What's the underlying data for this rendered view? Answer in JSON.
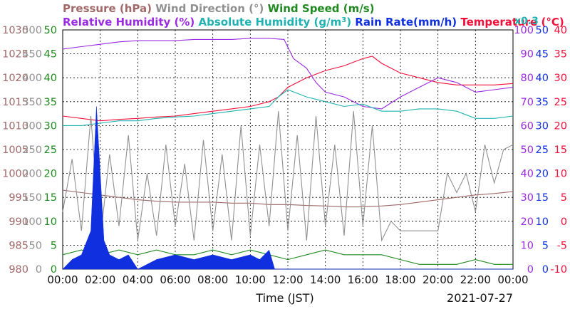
{
  "chart_data": {
    "type": "line",
    "legend": {
      "row1": [
        {
          "label": "Pressure (hPa)",
          "color": "#a06868"
        },
        {
          "label": "Wind Direction (°)",
          "color": "#909090"
        },
        {
          "label": "Wind Speed (m/s)",
          "color": "#1f8a1f"
        }
      ],
      "row2": [
        {
          "label": "Relative Humidity (%)",
          "color": "#9a2be0"
        },
        {
          "label": "Absolute Humidity (g/m",
          "sup": "3",
          "close": ")",
          "color": "#20b2b2"
        },
        {
          "label": "Rain Rate(mm/h)",
          "color": "#1030e0"
        },
        {
          "label": "Temperature (°C)",
          "color": "#f0103a"
        }
      ],
      "rain_scale_note": "x0.3"
    },
    "xlabel": "Time (JST)",
    "date": "2021-07-27",
    "x_ticks": [
      "00:00",
      "02:00",
      "04:00",
      "06:00",
      "08:00",
      "10:00",
      "12:00",
      "14:00",
      "16:00",
      "18:00",
      "20:00",
      "22:00",
      "00:00"
    ],
    "xlim_hours": [
      0,
      24
    ],
    "axes": {
      "pressure": {
        "ticks": [
          980,
          985,
          990,
          995,
          1000,
          1005,
          1010,
          1015,
          1020,
          1025,
          1030
        ],
        "range": [
          980,
          1030
        ],
        "color": "#a06868"
      },
      "wind_direction": {
        "ticks": [
          0,
          50,
          100,
          150,
          200,
          250,
          300,
          350,
          400,
          450,
          500
        ],
        "range": [
          0,
          500
        ],
        "color": "#909090"
      },
      "wind_speed": {
        "ticks": [
          0,
          5,
          10,
          15,
          20,
          25,
          30,
          35,
          40,
          45,
          50
        ],
        "range": [
          0,
          50
        ],
        "color": "#1f8a1f"
      },
      "relative_humidity": {
        "ticks": [
          0,
          10,
          20,
          30,
          40,
          50,
          60,
          70,
          80,
          90,
          100
        ],
        "range": [
          0,
          100
        ],
        "color": "#9a2be0"
      },
      "absolute_humidity_rain": {
        "ticks": [
          0,
          5,
          10,
          15,
          20,
          25,
          30,
          35,
          40,
          45,
          50
        ],
        "range": [
          0,
          50
        ],
        "color": "#1030e0"
      },
      "temperature": {
        "ticks": [
          -10,
          -5,
          0,
          5,
          10,
          15,
          20,
          25,
          30,
          35,
          40
        ],
        "range": [
          -10,
          40
        ],
        "color": "#f0103a"
      }
    },
    "series": [
      {
        "name": "Temperature (°C)",
        "axis": "temperature",
        "color": "#f0103a",
        "points": [
          [
            0,
            22
          ],
          [
            1,
            21.5
          ],
          [
            2,
            21
          ],
          [
            3,
            21.3
          ],
          [
            4,
            21.5
          ],
          [
            5,
            21.8
          ],
          [
            6,
            22
          ],
          [
            7,
            22.5
          ],
          [
            8,
            23
          ],
          [
            9,
            23.5
          ],
          [
            10,
            24
          ],
          [
            11,
            25
          ],
          [
            11.5,
            26
          ],
          [
            12,
            28
          ],
          [
            13,
            30
          ],
          [
            14,
            31.5
          ],
          [
            15,
            32.5
          ],
          [
            16,
            34
          ],
          [
            16.5,
            34.5
          ],
          [
            17,
            33
          ],
          [
            18,
            31
          ],
          [
            19,
            30
          ],
          [
            20,
            29
          ],
          [
            21,
            28.5
          ],
          [
            22,
            28.5
          ],
          [
            23,
            28.5
          ],
          [
            24,
            28.8
          ]
        ]
      },
      {
        "name": "Relative Humidity (%)",
        "axis": "relative_humidity",
        "color": "#9a2be0",
        "points": [
          [
            0,
            92
          ],
          [
            1,
            93
          ],
          [
            2,
            94
          ],
          [
            3,
            95
          ],
          [
            4,
            95.5
          ],
          [
            5,
            95.5
          ],
          [
            6,
            95.5
          ],
          [
            7,
            96
          ],
          [
            8,
            96
          ],
          [
            9,
            96
          ],
          [
            10,
            96.5
          ],
          [
            11,
            96.5
          ],
          [
            11.8,
            96
          ],
          [
            12.3,
            88
          ],
          [
            13,
            84
          ],
          [
            13.5,
            78
          ],
          [
            14,
            74
          ],
          [
            15,
            72
          ],
          [
            16,
            68
          ],
          [
            17,
            67
          ],
          [
            18,
            72
          ],
          [
            19,
            76
          ],
          [
            20,
            80
          ],
          [
            21,
            78
          ],
          [
            22,
            74
          ],
          [
            23,
            75
          ],
          [
            24,
            76
          ]
        ]
      },
      {
        "name": "Absolute Humidity (g/m³)",
        "axis": "absolute_humidity_rain",
        "color": "#20b2b2",
        "points": [
          [
            0,
            30
          ],
          [
            1,
            30
          ],
          [
            2,
            30.5
          ],
          [
            3,
            31
          ],
          [
            4,
            31
          ],
          [
            5,
            31.5
          ],
          [
            6,
            31.8
          ],
          [
            7,
            32
          ],
          [
            8,
            32.5
          ],
          [
            9,
            33
          ],
          [
            10,
            33.5
          ],
          [
            11,
            34
          ],
          [
            11.5,
            36
          ],
          [
            12,
            37.5
          ],
          [
            13,
            36
          ],
          [
            14,
            35
          ],
          [
            15,
            34
          ],
          [
            16,
            34.5
          ],
          [
            17,
            33
          ],
          [
            18,
            33
          ],
          [
            19,
            33.5
          ],
          [
            20,
            33.5
          ],
          [
            21,
            33
          ],
          [
            22,
            31.5
          ],
          [
            23,
            31.5
          ],
          [
            24,
            32
          ]
        ]
      },
      {
        "name": "Pressure (hPa)",
        "axis": "pressure",
        "color": "#a06868",
        "points": [
          [
            0,
            996.5
          ],
          [
            1,
            996
          ],
          [
            2,
            995.5
          ],
          [
            3,
            995
          ],
          [
            4,
            994.5
          ],
          [
            5,
            994.2
          ],
          [
            6,
            994
          ],
          [
            7,
            994
          ],
          [
            8,
            994
          ],
          [
            9,
            993.8
          ],
          [
            10,
            993.8
          ],
          [
            11,
            993.5
          ],
          [
            12,
            993.5
          ],
          [
            13,
            993.3
          ],
          [
            14,
            993.2
          ],
          [
            15,
            993
          ],
          [
            16,
            993
          ],
          [
            17,
            993.2
          ],
          [
            18,
            993.5
          ],
          [
            19,
            994
          ],
          [
            20,
            994.5
          ],
          [
            21,
            995
          ],
          [
            22,
            995.5
          ],
          [
            23,
            995.8
          ],
          [
            24,
            996.2
          ]
        ]
      },
      {
        "name": "Wind Speed (m/s)",
        "axis": "wind_speed",
        "color": "#1f8a1f",
        "points": [
          [
            0,
            3
          ],
          [
            1,
            4
          ],
          [
            2,
            3
          ],
          [
            3,
            4
          ],
          [
            4,
            3
          ],
          [
            5,
            4
          ],
          [
            6,
            3
          ],
          [
            7,
            3
          ],
          [
            8,
            4
          ],
          [
            9,
            3
          ],
          [
            10,
            4
          ],
          [
            11,
            3
          ],
          [
            12,
            2
          ],
          [
            13,
            3
          ],
          [
            14,
            4
          ],
          [
            15,
            3
          ],
          [
            16,
            3
          ],
          [
            17,
            3
          ],
          [
            18,
            2
          ],
          [
            19,
            1
          ],
          [
            20,
            1
          ],
          [
            21,
            1
          ],
          [
            22,
            2
          ],
          [
            23,
            1
          ],
          [
            24,
            1
          ]
        ]
      },
      {
        "name": "Wind Direction (°)",
        "axis": "wind_direction",
        "color": "#909090",
        "points": [
          [
            0,
            120
          ],
          [
            0.5,
            230
          ],
          [
            1,
            80
          ],
          [
            1.5,
            320
          ],
          [
            2,
            60
          ],
          [
            2.5,
            240
          ],
          [
            3,
            90
          ],
          [
            3.5,
            280
          ],
          [
            4,
            60
          ],
          [
            4.5,
            200
          ],
          [
            5,
            70
          ],
          [
            5.5,
            260
          ],
          [
            6,
            90
          ],
          [
            6.5,
            220
          ],
          [
            7,
            60
          ],
          [
            7.5,
            270
          ],
          [
            8,
            80
          ],
          [
            8.5,
            240
          ],
          [
            9,
            60
          ],
          [
            9.5,
            300
          ],
          [
            10,
            70
          ],
          [
            10.5,
            260
          ],
          [
            11,
            90
          ],
          [
            11.5,
            330
          ],
          [
            12,
            80
          ],
          [
            12.5,
            280
          ],
          [
            13,
            60
          ],
          [
            13.5,
            320
          ],
          [
            14,
            90
          ],
          [
            14.5,
            260
          ],
          [
            15,
            70
          ],
          [
            15.5,
            330
          ],
          [
            16,
            90
          ],
          [
            16.5,
            300
          ],
          [
            17,
            60
          ],
          [
            17.5,
            100
          ],
          [
            18,
            80
          ],
          [
            19,
            80
          ],
          [
            20,
            80
          ],
          [
            20.5,
            200
          ],
          [
            21,
            160
          ],
          [
            21.5,
            200
          ],
          [
            22,
            120
          ],
          [
            22.5,
            260
          ],
          [
            23,
            180
          ],
          [
            23.5,
            250
          ],
          [
            24,
            260
          ]
        ]
      },
      {
        "name": "Rain Rate(mm/h)",
        "axis": "absolute_humidity_rain",
        "color": "#1030e0",
        "style": "fill",
        "points": [
          [
            0,
            0
          ],
          [
            0.5,
            2
          ],
          [
            1,
            3
          ],
          [
            1.5,
            8
          ],
          [
            1.8,
            34
          ],
          [
            2,
            20
          ],
          [
            2.2,
            6
          ],
          [
            2.5,
            3
          ],
          [
            3,
            2
          ],
          [
            3.5,
            3
          ],
          [
            4,
            0
          ],
          [
            5,
            2
          ],
          [
            6,
            3
          ],
          [
            7,
            2
          ],
          [
            8,
            3
          ],
          [
            9,
            2
          ],
          [
            10,
            3
          ],
          [
            10.5,
            2
          ],
          [
            11,
            4
          ],
          [
            11.3,
            0
          ],
          [
            24,
            0
          ]
        ]
      }
    ]
  }
}
